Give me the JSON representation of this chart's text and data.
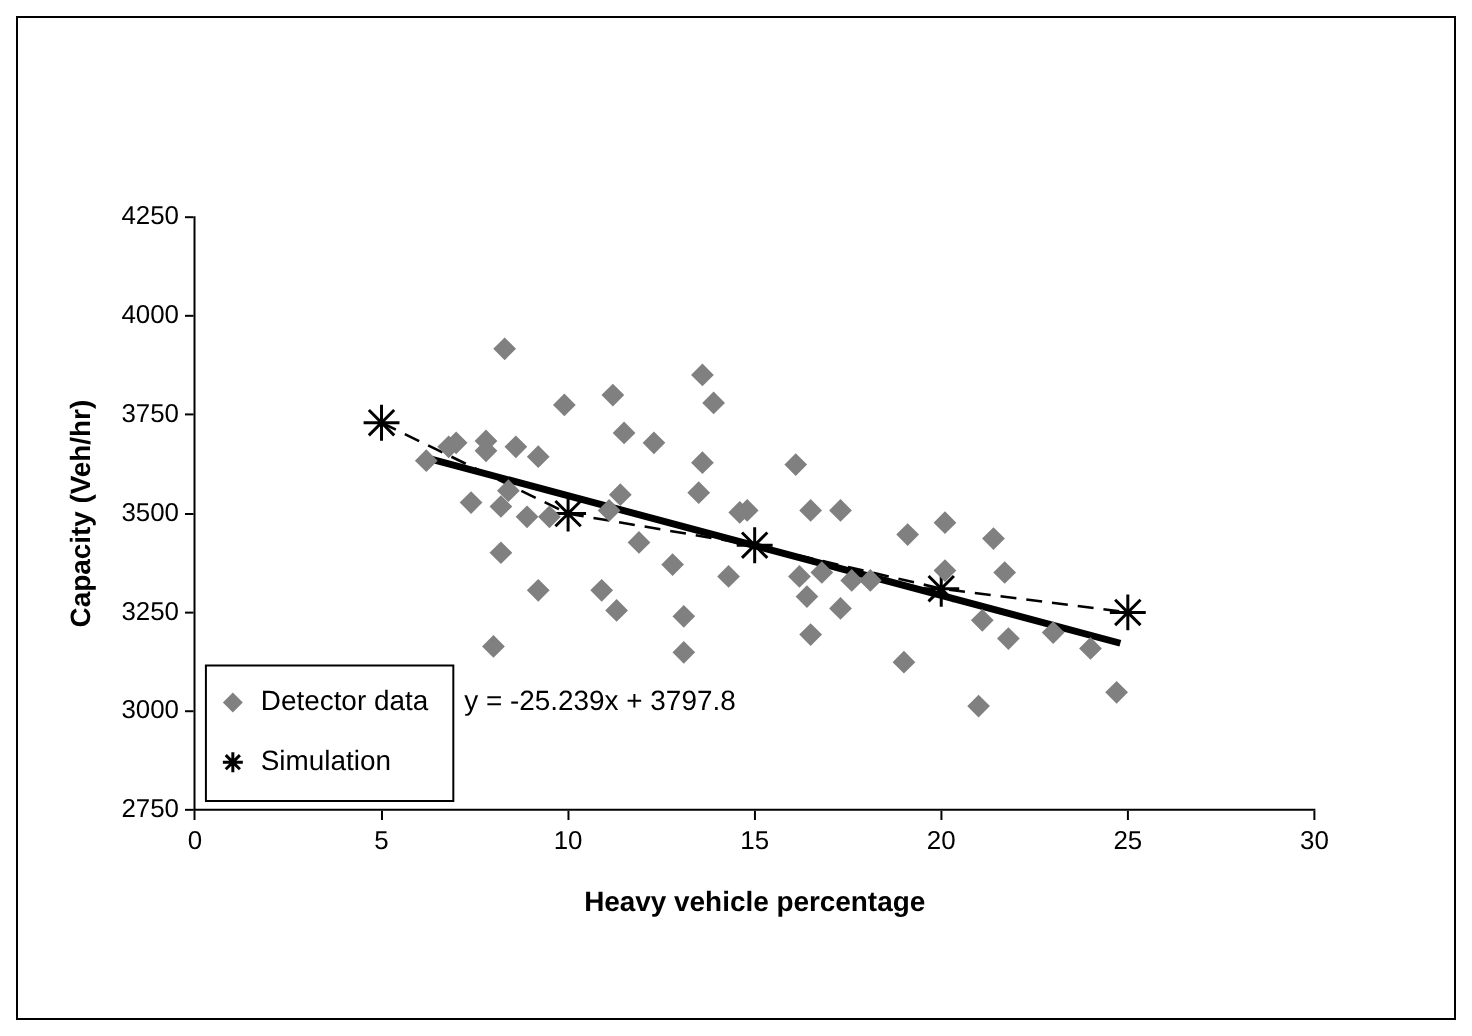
{
  "chart_data": {
    "type": "scatter",
    "xlabel": "Heavy vehicle percentage",
    "ylabel": "Capacity (Veh/hr)",
    "xlim": [
      0,
      30
    ],
    "xticks": [
      0,
      5,
      10,
      15,
      20,
      25,
      30
    ],
    "ylim": [
      2750,
      4250
    ],
    "yticks": [
      2750,
      3000,
      3250,
      3500,
      3750,
      4000,
      4250
    ],
    "grid": false,
    "legend": "bottom left",
    "annotations": [
      "y = -25.239x + 3797.8"
    ],
    "series": [
      {
        "name": "Detector data",
        "type": "scatter",
        "marker": "diamond",
        "color": "#808080",
        "x": [
          8.3,
          13.6,
          13.9,
          11.2,
          9.9,
          11.5,
          12.3,
          13.6,
          13.5,
          11.4,
          6.2,
          6.8,
          7.0,
          7.8,
          7.8,
          8.6,
          9.2,
          7.4,
          8.4,
          8.2,
          8.9,
          9.5,
          11.1,
          8.2,
          11.9,
          12.8,
          14.3,
          9.2,
          10.9,
          11.3,
          13.1,
          13.1,
          8.0,
          14.6,
          16.1,
          16.5,
          17.3,
          19.1,
          20.1,
          21.4,
          21.7,
          16.2,
          16.8,
          16.4,
          17.3,
          17.6,
          18.1,
          16.5,
          14.8,
          19.0,
          21.1,
          21.8,
          23.0,
          24.0,
          24.7,
          21.0,
          20.1
        ],
        "values": [
          3917,
          3851,
          3780,
          3800,
          3775,
          3704,
          3679,
          3629,
          3553,
          3548,
          3634,
          3669,
          3679,
          3684,
          3659,
          3669,
          3644,
          3528,
          3558,
          3518,
          3492,
          3492,
          3508,
          3401,
          3427,
          3371,
          3341,
          3306,
          3306,
          3255,
          3240,
          3149,
          3164,
          3503,
          3624,
          3508,
          3508,
          3447,
          3477,
          3437,
          3351,
          3341,
          3351,
          3290,
          3260,
          3331,
          3331,
          3194,
          3508,
          3124,
          3230,
          3184,
          3199,
          3159,
          3048,
          3013,
          3356
        ]
      },
      {
        "name": "Simulation",
        "type": "line",
        "marker": "cross",
        "line_style": "dashed",
        "color": "#000000",
        "x": [
          5,
          10,
          15,
          20,
          25
        ],
        "values": [
          3730,
          3500,
          3420,
          3310,
          3250
        ]
      },
      {
        "type": "line",
        "marker": "none",
        "line_style": "solid",
        "color": "#000000",
        "x": [
          6.2,
          24.8
        ],
        "values": [
          3641,
          3172
        ]
      }
    ]
  }
}
